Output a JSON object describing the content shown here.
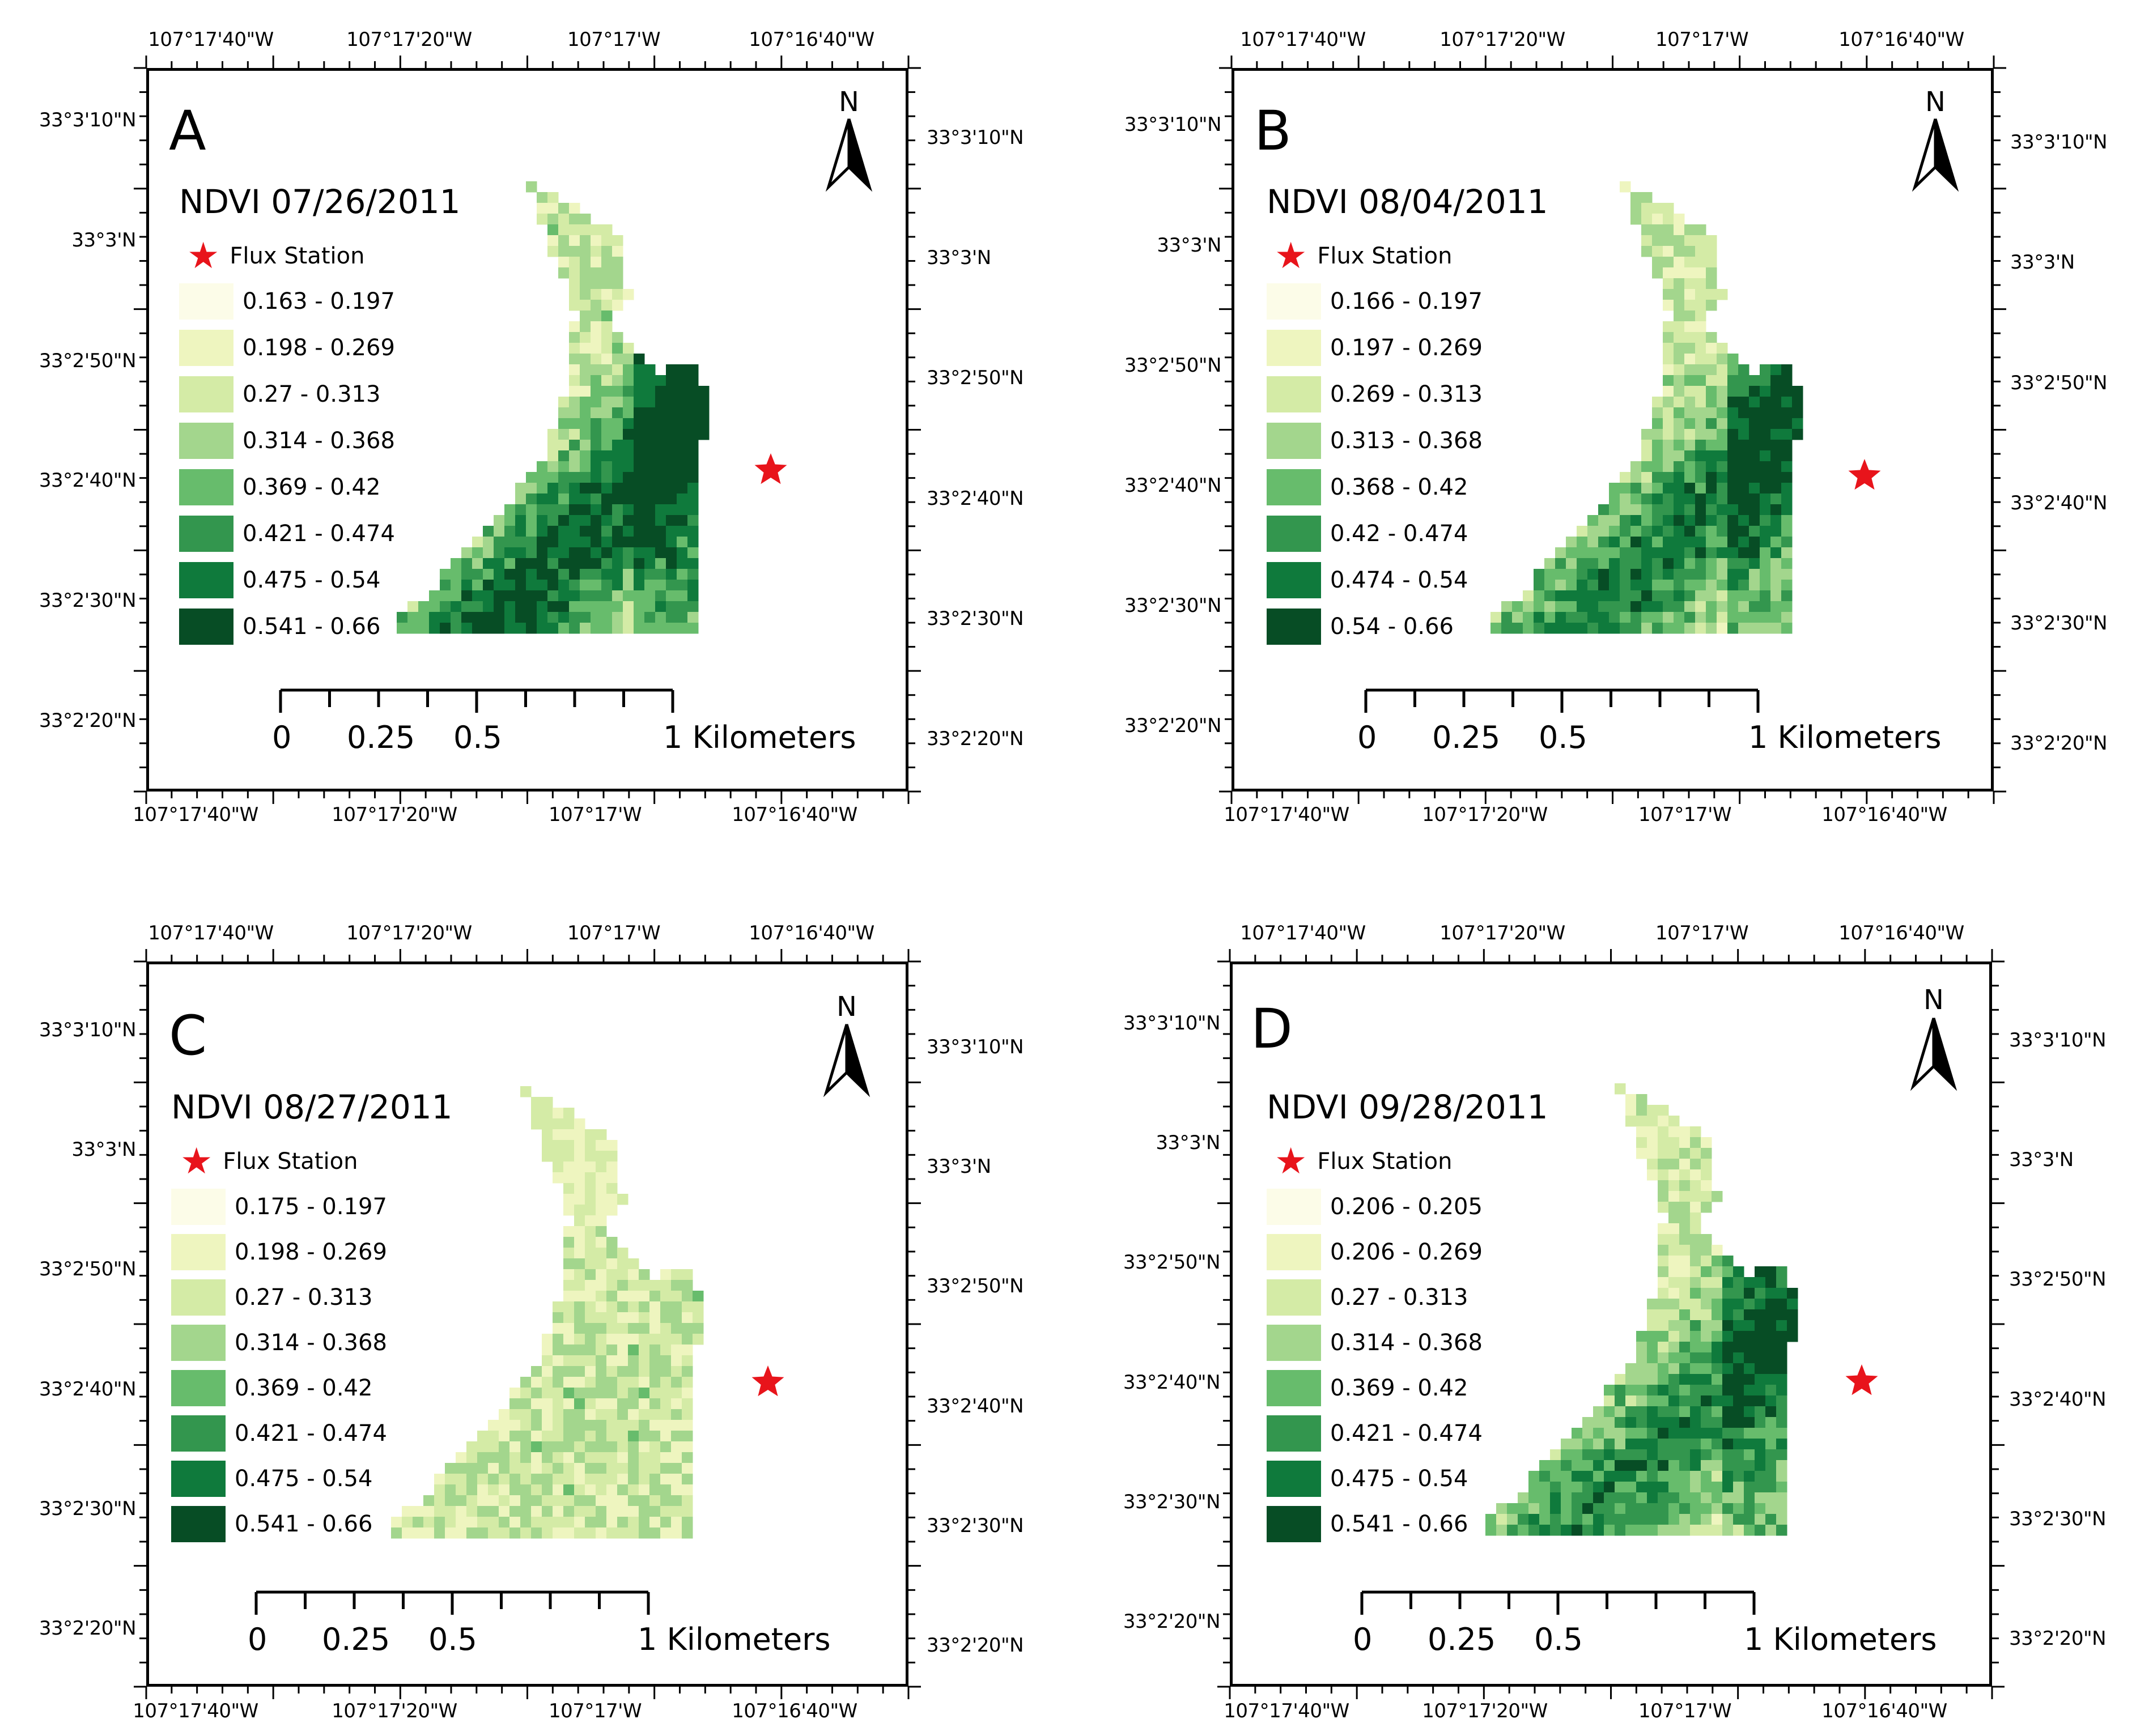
{
  "colors": {
    "classes": [
      "#fcfce8",
      "#eef5bf",
      "#d4eba6",
      "#a3d68d",
      "#67bc6c",
      "#33964e",
      "#0f7a3c",
      "#074d25"
    ],
    "star": "#e8141b",
    "frame": "#000000"
  },
  "common": {
    "flux_station_label": "Flux Station",
    "lon_top": [
      "107°17'40\"W",
      "107°17'20\"W",
      "107°17'W",
      "107°16'40\"W"
    ],
    "lon_bottom": [
      "107°17'40\"W",
      "107°17'20\"W",
      "107°17'W",
      "107°16'40\"W"
    ],
    "lat_left": [
      "33°3'10\"N",
      "33°3'N",
      "33°2'50\"N",
      "33°2'40\"N",
      "33°2'30\"N",
      "33°2'20\"N"
    ],
    "lat_right": [
      "33°3'10\"N",
      "33°3'N",
      "33°2'50\"N",
      "33°2'40\"N",
      "33°2'30\"N",
      "33°2'20\"N"
    ],
    "north_label": "N",
    "scale_labels": [
      "0",
      "0.25",
      "0.5",
      "1 Kilometers"
    ]
  },
  "panels": [
    {
      "letter": "A",
      "title": "NDVI 07/26/2011",
      "seed": 11,
      "bias": 0.55,
      "legend": [
        "0.163 - 0.197",
        "0.198 - 0.269",
        "0.27 - 0.313",
        "0.314 - 0.368",
        "0.369 - 0.42",
        "0.421 - 0.474",
        "0.475 - 0.54",
        "0.541 - 0.66"
      ]
    },
    {
      "letter": "B",
      "title": "NDVI 08/04/2011",
      "seed": 23,
      "bias": 0.45,
      "legend": [
        "0.166 - 0.197",
        "0.197 - 0.269",
        "0.269 - 0.313",
        "0.313 - 0.368",
        "0.368 - 0.42",
        "0.42 - 0.474",
        "0.474 - 0.54",
        "0.54 - 0.66"
      ]
    },
    {
      "letter": "C",
      "title": "NDVI 08/27/2011",
      "seed": 37,
      "bias": 0.05,
      "legend": [
        "0.175 - 0.197",
        "0.198 - 0.269",
        "0.27 - 0.313",
        "0.314 - 0.368",
        "0.369 - 0.42",
        "0.421 - 0.474",
        "0.475 - 0.54",
        "0.541 - 0.66"
      ]
    },
    {
      "letter": "D",
      "title": "NDVI 09/28/2011",
      "seed": 53,
      "bias": 0.42,
      "legend": [
        "0.206 - 0.205",
        "0.206 - 0.269",
        "0.27 - 0.313",
        "0.314 - 0.368",
        "0.369 - 0.42",
        "0.421 - 0.474",
        "0.475 - 0.54",
        "0.541 - 0.66"
      ]
    }
  ]
}
